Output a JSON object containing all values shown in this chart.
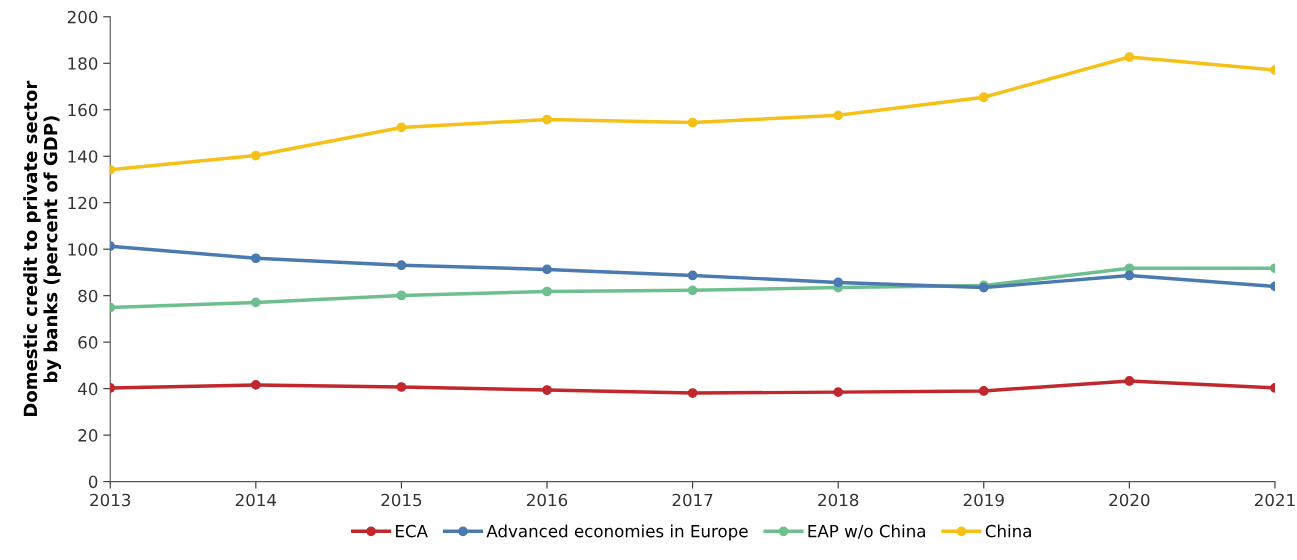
{
  "chart_data": {
    "type": "line",
    "ylabel": "Domestic credit to private sector\nby banks (percent of GDP)",
    "x": [
      2013,
      2014,
      2015,
      2016,
      2017,
      2018,
      2019,
      2020,
      2021
    ],
    "xlim": [
      2013,
      2021
    ],
    "xticks": [
      2013,
      2014,
      2015,
      2016,
      2017,
      2018,
      2019,
      2020,
      2021
    ],
    "ylim": [
      0,
      200
    ],
    "yticks": [
      0,
      20,
      40,
      60,
      80,
      100,
      120,
      140,
      160,
      180,
      200
    ],
    "grid": false,
    "legend": "bottom",
    "marker": "circle",
    "line_style": "solid",
    "series": [
      {
        "name": "ECA",
        "color": "#c0282d",
        "values": [
          40.3,
          41.6,
          40.7,
          39.4,
          38.1,
          38.5,
          39.0,
          43.3,
          40.3
        ]
      },
      {
        "name": "Advanced economies in Europe",
        "color": "#4a7ab0",
        "values": [
          101.3,
          96.1,
          93.1,
          91.3,
          88.7,
          85.7,
          83.5,
          88.7,
          84.0
        ]
      },
      {
        "name": "EAP w/o China",
        "color": "#6dbf8f",
        "values": [
          74.9,
          77.1,
          80.1,
          81.8,
          82.3,
          83.5,
          84.4,
          91.8,
          91.8
        ]
      },
      {
        "name": "China",
        "color": "#f5c018",
        "values": [
          134.2,
          140.3,
          152.4,
          155.8,
          154.5,
          157.6,
          165.4,
          182.7,
          177.1
        ]
      }
    ]
  }
}
